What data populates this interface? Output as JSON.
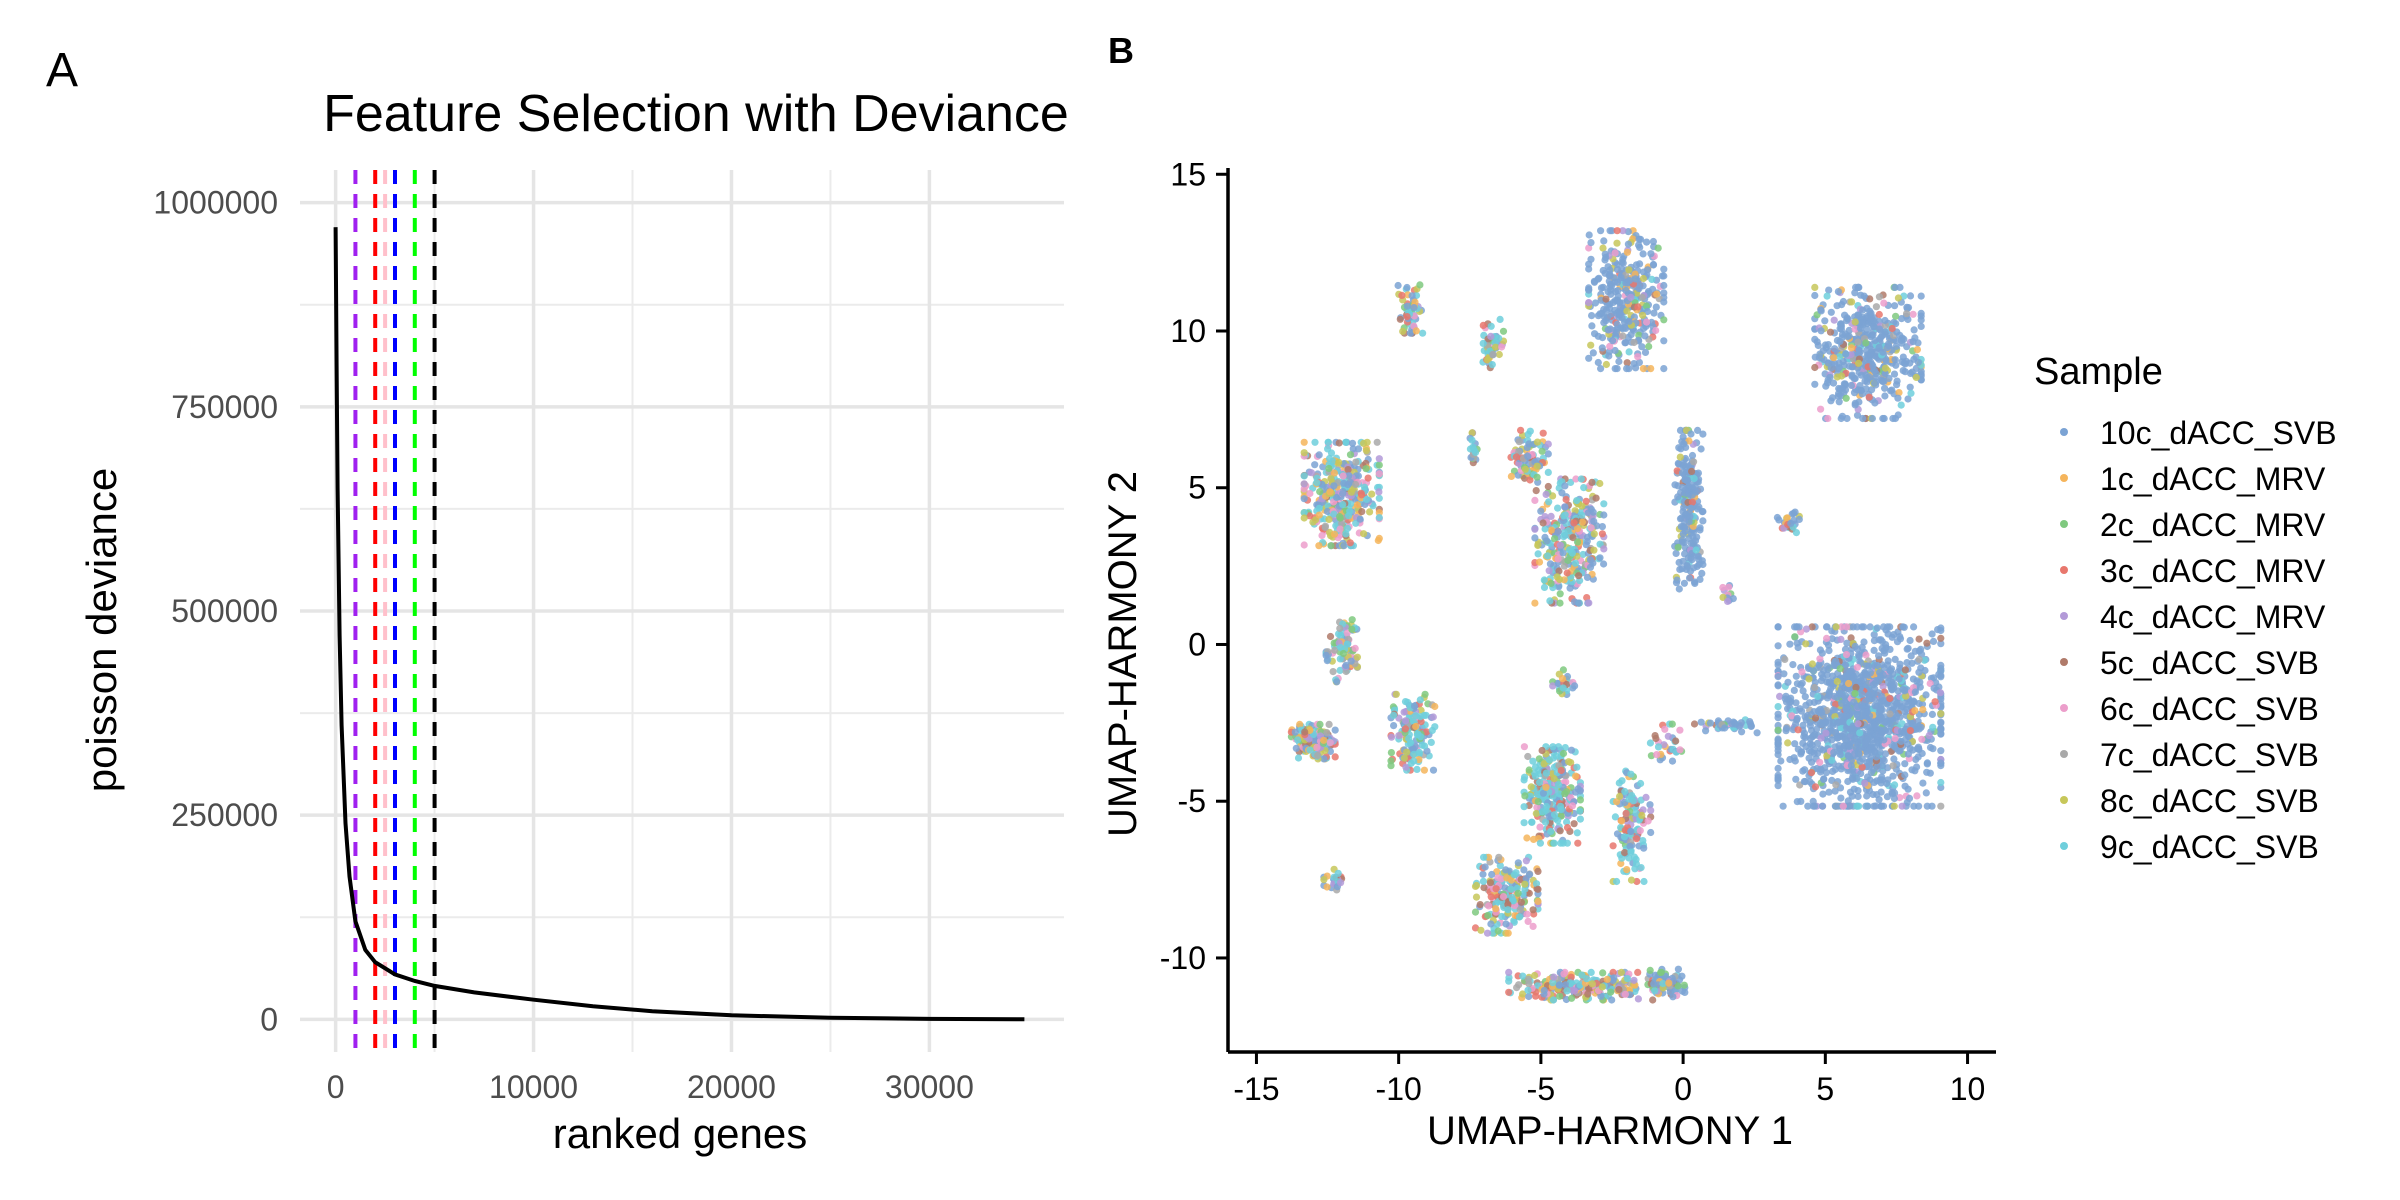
{
  "panels": {
    "a": {
      "tag": "A"
    },
    "b": {
      "tag": "B"
    }
  },
  "chart_data": [
    {
      "type": "line",
      "title": "Feature Selection with Deviance",
      "xlabel": "ranked genes",
      "ylabel": "poisson deviance",
      "xlim": [
        -1800,
        36800
      ],
      "ylim": [
        -40000,
        1040000
      ],
      "xticks": [
        0,
        10000,
        20000,
        30000
      ],
      "xtick_labels": [
        "0",
        "10000",
        "20000",
        "30000"
      ],
      "yticks": [
        0,
        250000,
        500000,
        750000,
        1000000
      ],
      "ytick_labels": [
        "0",
        "250000",
        "500000",
        "750000",
        "1000000"
      ],
      "grid": true,
      "series": [
        {
          "color": "#000000",
          "x": [
            0,
            50,
            100,
            200,
            300,
            500,
            700,
            1000,
            1500,
            2000,
            3000,
            4000,
            5000,
            7000,
            10000,
            13000,
            16000,
            20000,
            25000,
            30000,
            34800
          ],
          "y": [
            970000,
            800000,
            650000,
            470000,
            360000,
            240000,
            175000,
            120000,
            85000,
            70000,
            55000,
            47000,
            41000,
            33000,
            24000,
            16000,
            10000,
            5000,
            2000,
            500,
            0
          ]
        }
      ],
      "cutoff_lines": [
        {
          "x": 1000,
          "color": "#a020f0"
        },
        {
          "x": 2000,
          "color": "#ff0000"
        },
        {
          "x": 2500,
          "color": "#ffc0cb"
        },
        {
          "x": 3000,
          "color": "#0000ff"
        },
        {
          "x": 4000,
          "color": "#00ff00"
        },
        {
          "x": 5000,
          "color": "#000000"
        }
      ]
    },
    {
      "type": "scatter",
      "xlabel": "UMAP-HARMONY 1",
      "ylabel": "UMAP-HARMONY 2",
      "xlim": [
        -16,
        11
      ],
      "ylim": [
        -13,
        15.2
      ],
      "xticks": [
        -15,
        -10,
        -5,
        0,
        5,
        10
      ],
      "xtick_labels": [
        "-15",
        "-10",
        "-5",
        "0",
        "5",
        "10"
      ],
      "yticks": [
        -10,
        -5,
        0,
        5,
        10,
        15
      ],
      "ytick_labels": [
        "-10",
        "-5",
        "0",
        "5",
        "10",
        "15"
      ],
      "grid": false,
      "legend": {
        "title": "Sample",
        "position": "right",
        "entries": [
          {
            "label": "10c_dACC_SVB",
            "color": "#7ba3d4"
          },
          {
            "label": "1c_dACC_MRV",
            "color": "#f5b55c"
          },
          {
            "label": "2c_dACC_MRV",
            "color": "#7fc97f"
          },
          {
            "label": "3c_dACC_MRV",
            "color": "#e8776d"
          },
          {
            "label": "4c_dACC_MRV",
            "color": "#b39ad8"
          },
          {
            "label": "5c_dACC_SVB",
            "color": "#b07a6a"
          },
          {
            "label": "6c_dACC_SVB",
            "color": "#ec9ecb"
          },
          {
            "label": "7c_dACC_SVB",
            "color": "#a9a9a9"
          },
          {
            "label": "8c_dACC_SVB",
            "color": "#c7c75a"
          },
          {
            "label": "9c_dACC_SVB",
            "color": "#6fcfdc"
          }
        ]
      },
      "clusters": [
        {
          "cx": 6.2,
          "cy": -2.3,
          "sx": 2.6,
          "sy": 2.6,
          "n": 1300,
          "mix": [
            0.8,
            0.02,
            0.02,
            0.02,
            0.02,
            0.02,
            0.02,
            0.02,
            0.02,
            0.04
          ]
        },
        {
          "cx": 6.5,
          "cy": 9.3,
          "sx": 1.7,
          "sy": 1.9,
          "n": 480,
          "mix": [
            0.75,
            0.03,
            0.02,
            0.02,
            0.02,
            0.02,
            0.02,
            0.02,
            0.05,
            0.05
          ]
        },
        {
          "cx": -2.0,
          "cy": 11.0,
          "sx": 1.2,
          "sy": 2.0,
          "n": 360,
          "mix": [
            0.7,
            0.04,
            0.03,
            0.02,
            0.03,
            0.02,
            0.03,
            0.03,
            0.04,
            0.06
          ]
        },
        {
          "cx": 0.2,
          "cy": 4.3,
          "sx": 0.45,
          "sy": 2.3,
          "n": 220,
          "mix": [
            0.78,
            0.02,
            0.02,
            0.02,
            0.02,
            0.02,
            0.02,
            0.02,
            0.04,
            0.04
          ]
        },
        {
          "cx": -12.0,
          "cy": 4.8,
          "sx": 1.2,
          "sy": 1.5,
          "n": 360,
          "mix": [
            0.2,
            0.08,
            0.08,
            0.06,
            0.06,
            0.05,
            0.07,
            0.05,
            0.1,
            0.25
          ]
        },
        {
          "cx": -4.0,
          "cy": 3.3,
          "sx": 1.1,
          "sy": 1.8,
          "n": 300,
          "mix": [
            0.22,
            0.08,
            0.08,
            0.06,
            0.06,
            0.05,
            0.06,
            0.05,
            0.1,
            0.24
          ]
        },
        {
          "cx": -5.4,
          "cy": 5.9,
          "sx": 0.6,
          "sy": 0.9,
          "n": 90,
          "mix": [
            0.2,
            0.08,
            0.08,
            0.07,
            0.06,
            0.06,
            0.07,
            0.05,
            0.1,
            0.23
          ]
        },
        {
          "cx": -13.0,
          "cy": -3.1,
          "sx": 0.7,
          "sy": 0.5,
          "n": 150,
          "mix": [
            0.15,
            0.1,
            0.08,
            0.08,
            0.08,
            0.08,
            0.08,
            0.05,
            0.12,
            0.18
          ]
        },
        {
          "cx": -12.0,
          "cy": -0.2,
          "sx": 0.5,
          "sy": 0.9,
          "n": 80,
          "mix": [
            0.2,
            0.08,
            0.08,
            0.07,
            0.06,
            0.06,
            0.07,
            0.05,
            0.1,
            0.23
          ]
        },
        {
          "cx": -9.5,
          "cy": -2.8,
          "sx": 0.7,
          "sy": 1.1,
          "n": 150,
          "mix": [
            0.2,
            0.06,
            0.06,
            0.05,
            0.05,
            0.05,
            0.05,
            0.05,
            0.08,
            0.35
          ]
        },
        {
          "cx": -9.6,
          "cy": 10.7,
          "sx": 0.4,
          "sy": 0.7,
          "n": 60,
          "mix": [
            0.2,
            0.08,
            0.08,
            0.07,
            0.06,
            0.06,
            0.07,
            0.05,
            0.1,
            0.23
          ]
        },
        {
          "cx": -6.7,
          "cy": 9.6,
          "sx": 0.35,
          "sy": 0.7,
          "n": 50,
          "mix": [
            0.25,
            0.08,
            0.08,
            0.06,
            0.06,
            0.05,
            0.07,
            0.05,
            0.1,
            0.2
          ]
        },
        {
          "cx": -4.6,
          "cy": -4.8,
          "sx": 0.9,
          "sy": 1.4,
          "n": 260,
          "mix": [
            0.15,
            0.06,
            0.06,
            0.05,
            0.05,
            0.05,
            0.05,
            0.05,
            0.08,
            0.4
          ]
        },
        {
          "cx": -6.2,
          "cy": -8.0,
          "sx": 1.0,
          "sy": 1.1,
          "n": 200,
          "mix": [
            0.12,
            0.08,
            0.08,
            0.08,
            0.08,
            0.08,
            0.1,
            0.05,
            0.13,
            0.2
          ]
        },
        {
          "cx": -3.6,
          "cy": -10.9,
          "sx": 2.3,
          "sy": 0.4,
          "n": 240,
          "mix": [
            0.12,
            0.09,
            0.08,
            0.08,
            0.08,
            0.08,
            0.11,
            0.05,
            0.13,
            0.18
          ]
        },
        {
          "cx": -1.8,
          "cy": -5.8,
          "sx": 0.6,
          "sy": 1.6,
          "n": 130,
          "mix": [
            0.15,
            0.06,
            0.06,
            0.05,
            0.05,
            0.05,
            0.05,
            0.05,
            0.08,
            0.4
          ]
        },
        {
          "cx": -0.6,
          "cy": -10.8,
          "sx": 0.6,
          "sy": 0.4,
          "n": 80,
          "mix": [
            0.4,
            0.06,
            0.05,
            0.05,
            0.05,
            0.05,
            0.05,
            0.05,
            0.08,
            0.16
          ]
        },
        {
          "cx": -12.3,
          "cy": -7.5,
          "sx": 0.3,
          "sy": 0.3,
          "n": 22,
          "mix": [
            0.3,
            0.05,
            0.05,
            0.05,
            0.05,
            0.05,
            0.05,
            0.05,
            0.1,
            0.25
          ]
        },
        {
          "cx": 3.7,
          "cy": 3.9,
          "sx": 0.35,
          "sy": 0.3,
          "n": 25,
          "mix": [
            0.4,
            0.05,
            0.05,
            0.05,
            0.05,
            0.05,
            0.05,
            0.05,
            0.1,
            0.15
          ]
        },
        {
          "cx": -7.4,
          "cy": 6.2,
          "sx": 0.15,
          "sy": 0.5,
          "n": 20,
          "mix": [
            0.3,
            0.05,
            0.1,
            0.05,
            0.05,
            0.05,
            0.05,
            0.05,
            0.1,
            0.2
          ]
        },
        {
          "cx": 1.6,
          "cy": 1.6,
          "sx": 0.2,
          "sy": 0.3,
          "n": 12,
          "mix": [
            0.4,
            0.05,
            0.05,
            0.05,
            0.05,
            0.05,
            0.05,
            0.05,
            0.1,
            0.15
          ]
        },
        {
          "cx": 1.5,
          "cy": -2.6,
          "sx": 1.0,
          "sy": 0.2,
          "n": 40,
          "mix": [
            0.6,
            0.03,
            0.03,
            0.03,
            0.03,
            0.03,
            0.03,
            0.03,
            0.05,
            0.14
          ]
        },
        {
          "cx": -0.6,
          "cy": -3.2,
          "sx": 0.5,
          "sy": 0.6,
          "n": 30,
          "mix": [
            0.2,
            0.08,
            0.08,
            0.07,
            0.06,
            0.06,
            0.07,
            0.05,
            0.1,
            0.23
          ]
        },
        {
          "cx": -4.2,
          "cy": -1.3,
          "sx": 0.35,
          "sy": 0.45,
          "n": 25,
          "mix": [
            0.2,
            0.08,
            0.08,
            0.07,
            0.06,
            0.06,
            0.07,
            0.05,
            0.1,
            0.23
          ]
        }
      ]
    }
  ]
}
